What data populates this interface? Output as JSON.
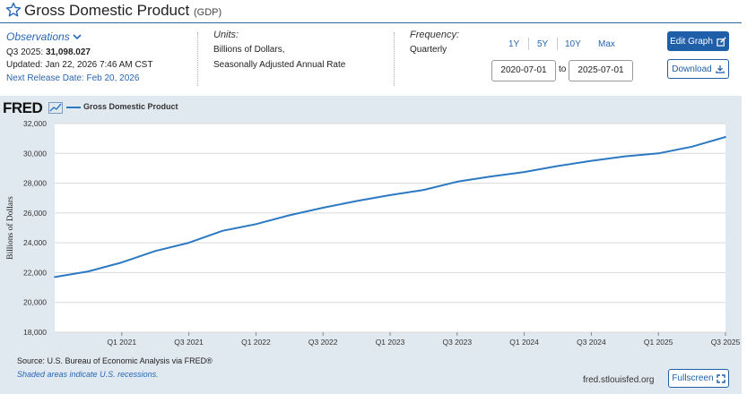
{
  "header": {
    "title": "Gross Domestic Product",
    "code": "(GDP)"
  },
  "observations": {
    "label": "Observations",
    "period": "Q3 2025:",
    "value": "31,098.027",
    "updated": "Updated: Jan 22, 2026 7:46 AM CST",
    "next_release": "Next Release Date: Feb 20, 2026"
  },
  "units": {
    "label": "Units:",
    "line1": "Billions of Dollars,",
    "line2": "Seasonally Adjusted Annual Rate"
  },
  "frequency": {
    "label": "Frequency:",
    "value": "Quarterly"
  },
  "range": {
    "options": [
      "1Y",
      "5Y",
      "10Y",
      "Max"
    ],
    "start": "2020-07-01",
    "to": "to",
    "end": "2025-07-01"
  },
  "buttons": {
    "edit_graph": "Edit Graph",
    "download": "Download",
    "fullscreen": "Fullscreen"
  },
  "graph": {
    "logo": "FRED",
    "source": "Source: U.S. Bureau of Economic Analysis via FRED®",
    "shaded": "Shaded areas indicate U.S. recessions.",
    "site": "fred.stlouisfed.org"
  },
  "colors": {
    "accent": "#1e5fa8",
    "series": "#2c79c2",
    "panel": "#e1e9f0"
  },
  "chart_data": {
    "type": "line",
    "title": "",
    "xlabel": "",
    "ylabel": "Billions of Dollars",
    "ylim": [
      18000,
      32000
    ],
    "yticks": [
      18000,
      20000,
      22000,
      24000,
      26000,
      28000,
      30000,
      32000
    ],
    "ytick_labels": [
      "18,000",
      "20,000",
      "22,000",
      "24,000",
      "26,000",
      "28,000",
      "30,000",
      "32,000"
    ],
    "x": [
      "2020-Q3",
      "2020-Q4",
      "2021-Q1",
      "2021-Q2",
      "2021-Q3",
      "2021-Q4",
      "2022-Q1",
      "2022-Q2",
      "2022-Q3",
      "2022-Q4",
      "2023-Q1",
      "2023-Q2",
      "2023-Q3",
      "2023-Q4",
      "2024-Q1",
      "2024-Q2",
      "2024-Q3",
      "2024-Q4",
      "2025-Q1",
      "2025-Q2",
      "2025-Q3"
    ],
    "xtick_labels": [
      {
        "index": 2,
        "label": "Q1 2021"
      },
      {
        "index": 4,
        "label": "Q3 2021"
      },
      {
        "index": 6,
        "label": "Q1 2022"
      },
      {
        "index": 8,
        "label": "Q3 2022"
      },
      {
        "index": 10,
        "label": "Q1 2023"
      },
      {
        "index": 12,
        "label": "Q3 2023"
      },
      {
        "index": 14,
        "label": "Q1 2024"
      },
      {
        "index": 16,
        "label": "Q3 2024"
      },
      {
        "index": 18,
        "label": "Q1 2025"
      },
      {
        "index": 20,
        "label": "Q3 2025"
      }
    ],
    "grid": true,
    "legend": "top-left",
    "series": [
      {
        "name": "Gross Domestic Product",
        "values": [
          21700,
          22080,
          22680,
          23450,
          24000,
          24800,
          25250,
          25850,
          26350,
          26800,
          27200,
          27550,
          28100,
          28450,
          28750,
          29150,
          29500,
          29800,
          30000,
          30450,
          31098
        ]
      }
    ]
  }
}
